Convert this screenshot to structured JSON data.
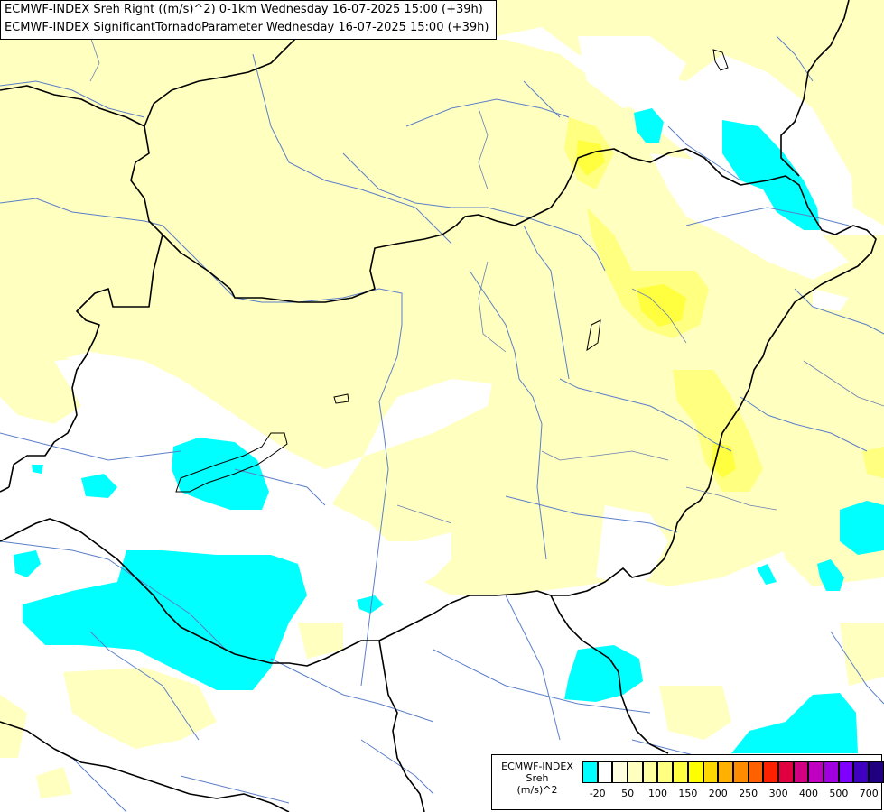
{
  "title": {
    "line1": "ECMWF-INDEX Sreh Right ((m/s)^2) 0-1km Wednesday 16-07-2025 15:00 (+39h)",
    "line2": "ECMWF-INDEX SignificantTornadoParameter Wednesday 16-07-2025 15:00 (+39h)"
  },
  "legend": {
    "label_line1": "ECMWF-INDEX",
    "label_line2": "Sreh",
    "label_line3": "(m/s)^2",
    "colors": [
      "#00ffff",
      "#ffffff",
      "#ffffe0",
      "#ffffc0",
      "#ffffa0",
      "#ffff80",
      "#ffff40",
      "#ffff00",
      "#ffd700",
      "#ffb000",
      "#ff8c00",
      "#ff6000",
      "#ff2000",
      "#e00040",
      "#d00080",
      "#c000c0",
      "#a000e0",
      "#8000ff",
      "#4000c0",
      "#200080"
    ],
    "ticks": [
      "-20",
      "50",
      "100",
      "150",
      "200",
      "250",
      "300",
      "400",
      "500",
      "700"
    ]
  },
  "colors": {
    "low_cyan": "#00ffff",
    "yellow_light": "#ffffc0",
    "yellow_mid": "#ffff80",
    "yellow_strong": "#ffff40",
    "border": "#000000",
    "river": "#5b7fc8"
  }
}
